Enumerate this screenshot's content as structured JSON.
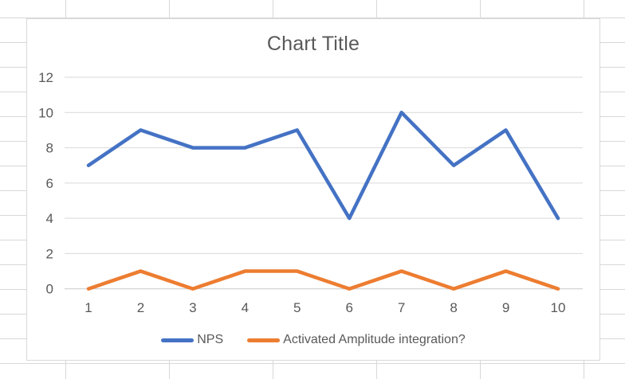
{
  "chart_data": {
    "type": "line",
    "title": "Chart Title",
    "x": [
      1,
      2,
      3,
      4,
      5,
      6,
      7,
      8,
      9,
      10
    ],
    "series": [
      {
        "name": "NPS",
        "color": "#4472C4",
        "values": [
          7,
          9,
          8,
          8,
          9,
          4,
          10,
          7,
          9,
          4
        ]
      },
      {
        "name": "Activated Amplitude integration?",
        "color": "#ED7D31",
        "values": [
          0,
          1,
          0,
          1,
          1,
          0,
          1,
          0,
          1,
          0
        ]
      }
    ],
    "ylim": [
      0,
      12
    ],
    "yticks": [
      0,
      2,
      4,
      6,
      8,
      10,
      12
    ],
    "xlabel": "",
    "ylabel": "",
    "grid": true,
    "legend_position": "bottom"
  },
  "theme": {
    "text_color": "#595959",
    "gridline_color": "#d9d9d9",
    "axis_line_color": "#c8c8c8",
    "chart_background": "#ffffff",
    "chart_border_color": "#d9d9d9",
    "sheet_gridline_color": "#d8d8d8"
  }
}
